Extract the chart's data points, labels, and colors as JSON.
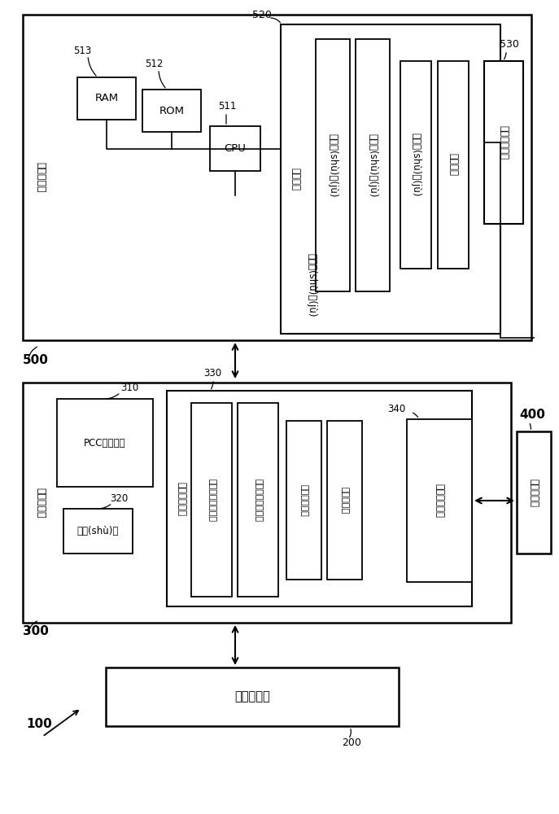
{
  "bg_color": "#ffffff",
  "host_computer_label": "主機計算機",
  "motion_controller_label": "運動控制器",
  "cmm_label": "坐標測量機",
  "manual_controller_label": "手動控制器",
  "cpu_label": "CPU",
  "rom_label": "ROM",
  "ram_label": "RAM",
  "label_511": "511",
  "label_512": "512",
  "label_513": "513",
  "storage_unit_label": "存儲單元",
  "design_data_label": "設計數(shù)據(jù)",
  "raw_data_label": "原始數(shù)據(jù)",
  "calib_data_label": "校正數(shù)據(jù)",
  "meas_data_label": "測量數(shù)據(jù)",
  "ctrl_prog_label": "控制程序",
  "label_520": "520",
  "shape_analysis_label": "形狀分析單元",
  "label_530": "530",
  "pcc_label": "PCC獲取單元",
  "label_310": "310",
  "counter_label": "計數(shù)器",
  "label_320": "320",
  "path_calc_label": "路徑計算單元",
  "label_330": "330",
  "passive_scan_label": "被動標稱掃描測量",
  "active_scan_label": "主動標稱掃描測量",
  "auto_scan_label": "自主掃描測量",
  "touch_label": "接觸點測量",
  "drive_ctrl_label": "驅動控制單元",
  "label_340": "340",
  "section_500_label": "500",
  "section_300_label": "300",
  "section_400_label": "400",
  "section_100_label": "100",
  "section_200_label": "200"
}
